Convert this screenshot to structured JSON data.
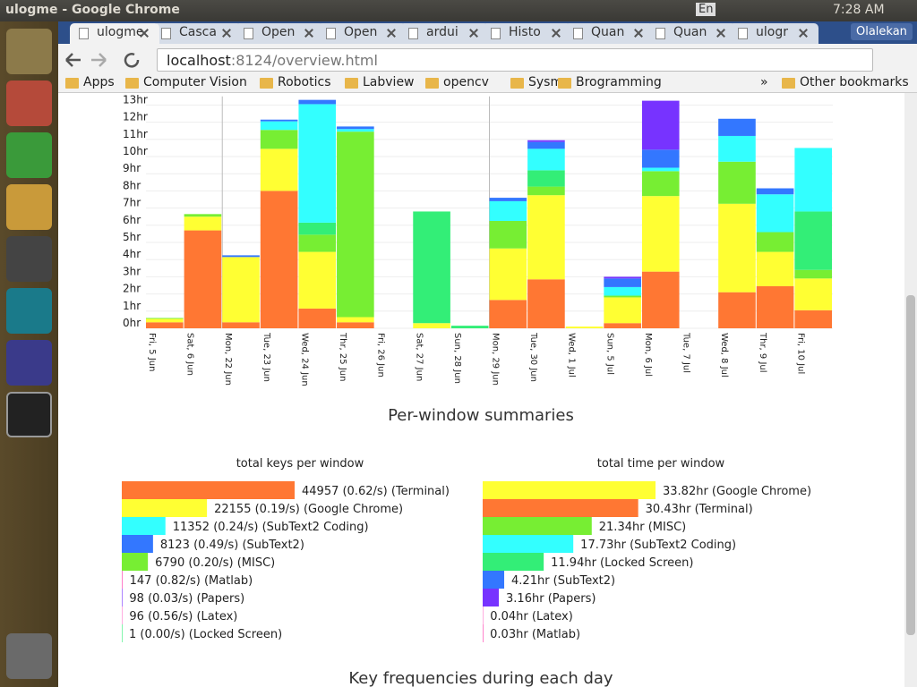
{
  "system_bar": {
    "title": "ulogme - Google Chrome",
    "keyboard": "En",
    "clock": "7:28 AM"
  },
  "browser": {
    "tabs": [
      "ulogme",
      "Casca",
      "Open",
      "Open",
      "ardui",
      "Histo",
      "Quan",
      "Quan",
      "ulogr"
    ],
    "user": "Olalekan",
    "url": {
      "host": "localhost",
      "path": ":8124/overview.html"
    },
    "bookmarks": [
      "Apps",
      "Computer Vision",
      "Robotics",
      "Labview",
      "opencv",
      "Sysm",
      "Brogramming"
    ],
    "more": "»",
    "other_bookmarks": "Other bookmarks"
  },
  "headings": {
    "summaries": "Per-window summaries",
    "key_frequencies": "Key frequencies during each day"
  },
  "chart_data": [
    {
      "type": "stacked_bar",
      "categories": [
        "Fri, 5 Jun",
        "Sat, 6 Jun",
        "Mon, 22 Jun",
        "Tue, 23 Jun",
        "Wed, 24 Jun",
        "Thr, 25 Jun",
        "Fri, 26 Jun",
        "Sat, 27 Jun",
        "Sun, 28 Jun",
        "Mon, 29 Jun",
        "Tue, 30 Jun",
        "Wed, 1 Jul",
        "Sun, 5 Jul",
        "Mon, 6 Jul",
        "Tue, 7 Jul",
        "Wed, 8 Jul",
        "Thr, 9 Jul",
        "Fri, 10 Jul"
      ],
      "series": [
        {
          "color": "#ff7733",
          "values": [
            0.35,
            5.7,
            0.35,
            8.0,
            1.15,
            0.35,
            0,
            0,
            0,
            1.65,
            2.85,
            0,
            0.3,
            3.3,
            0,
            2.1,
            2.45,
            1.05
          ]
        },
        {
          "color": "#ffff33",
          "values": [
            0.2,
            0.8,
            3.8,
            2.45,
            3.3,
            0.3,
            0,
            0.3,
            0,
            3.0,
            4.9,
            0.1,
            1.5,
            4.4,
            0,
            5.15,
            2.0,
            1.85
          ]
        },
        {
          "color": "#77ee33",
          "values": [
            0.05,
            0.15,
            0,
            1.1,
            1.0,
            10.8,
            0,
            0,
            0,
            1.6,
            0.5,
            0,
            0.1,
            1.45,
            0,
            2.45,
            1.15,
            0.5
          ]
        },
        {
          "color": "#33ee77",
          "values": [
            0,
            0,
            0,
            0,
            0.7,
            0,
            0,
            6.5,
            0.15,
            0,
            0.95,
            0,
            0,
            0,
            0,
            0,
            0,
            3.4
          ]
        },
        {
          "color": "#33ffff",
          "values": [
            0,
            0,
            0,
            0.5,
            6.9,
            0.15,
            0,
            0,
            0,
            1.15,
            1.25,
            0,
            0.5,
            0.2,
            0,
            1.5,
            2.2,
            3.7
          ]
        },
        {
          "color": "#3377ff",
          "values": [
            0,
            0,
            0.1,
            0.1,
            0.25,
            0.15,
            0,
            0,
            0,
            0.2,
            0.4,
            0,
            0.5,
            1.05,
            0,
            1.0,
            0.35,
            0
          ]
        },
        {
          "color": "#7733ff",
          "values": [
            0,
            0,
            0,
            0,
            0,
            0,
            0,
            0,
            0,
            0,
            0.1,
            0,
            0.1,
            2.85,
            0,
            0,
            0,
            0
          ]
        }
      ],
      "ylim": [
        0,
        13.5
      ],
      "yticks": [
        {
          "value": 0,
          "label": "0hr"
        },
        {
          "value": 1,
          "label": "1hr"
        },
        {
          "value": 2,
          "label": "2hr"
        },
        {
          "value": 3,
          "label": "3hr"
        },
        {
          "value": 4,
          "label": "4hr"
        },
        {
          "value": 5,
          "label": "5hr"
        },
        {
          "value": 6,
          "label": "6hr"
        },
        {
          "value": 7,
          "label": "7hr"
        },
        {
          "value": 8,
          "label": "8hr"
        },
        {
          "value": 9,
          "label": "9hr"
        },
        {
          "value": 10,
          "label": "10hr"
        },
        {
          "value": 11,
          "label": "11hr"
        },
        {
          "value": 12,
          "label": "12hr"
        },
        {
          "value": 13,
          "label": "13hr"
        }
      ],
      "grid": true
    },
    {
      "type": "hbar",
      "title": "total keys per window",
      "values": [
        44957,
        22155,
        11352,
        8123,
        6790,
        147,
        98,
        96,
        1
      ],
      "value_labels": [
        "44957 (0.62/s) (Terminal)",
        "22155 (0.19/s) (Google Chrome)",
        "11352 (0.24/s) (SubText2 Coding)",
        "8123 (0.49/s) (SubText2)",
        "6790 (0.20/s) (MISC)",
        "147 (0.82/s) (Matlab)",
        "98 (0.03/s) (Papers)",
        "96 (0.56/s) (Latex)",
        "1 (0.00/s) (Locked Screen)"
      ],
      "colors": [
        "#ff7733",
        "#ffff33",
        "#33ffff",
        "#3377ff",
        "#77ee33",
        "#ff33aa",
        "#7733ff",
        "#ff77cc",
        "#33ee77"
      ]
    },
    {
      "type": "hbar",
      "title": "total time per window",
      "values": [
        33.82,
        30.43,
        21.34,
        17.73,
        11.94,
        4.21,
        3.16,
        0.04,
        0.03
      ],
      "value_labels": [
        "33.82hr (Google Chrome)",
        "30.43hr (Terminal)",
        "21.34hr (MISC)",
        "17.73hr (SubText2 Coding)",
        "11.94hr (Locked Screen)",
        "4.21hr (SubText2)",
        "3.16hr (Papers)",
        "0.04hr (Latex)",
        "0.03hr (Matlab)"
      ],
      "colors": [
        "#ffff33",
        "#ff7733",
        "#77ee33",
        "#33ffff",
        "#33ee77",
        "#3377ff",
        "#7733ff",
        "#ff77cc",
        "#ff33aa"
      ]
    }
  ]
}
